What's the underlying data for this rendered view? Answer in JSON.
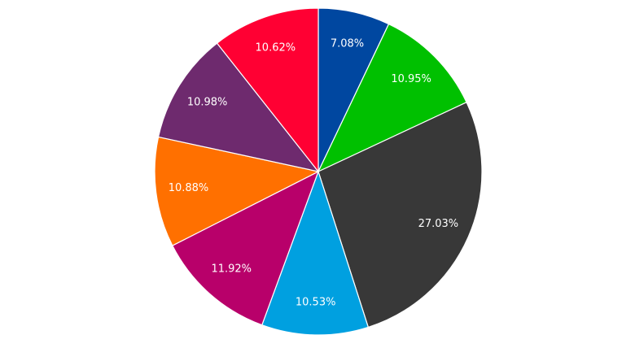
{
  "chart_data": {
    "type": "pie",
    "values": [
      7.08,
      10.95,
      27.03,
      10.53,
      11.92,
      10.88,
      10.98,
      10.62
    ],
    "value_labels": [
      "7.08%",
      "10.95%",
      "27.03%",
      "10.53%",
      "11.92%",
      "10.88%",
      "10.98%",
      "10.62%"
    ],
    "colors": [
      "#0047a0",
      "#00c000",
      "#383838",
      "#00a0e0",
      "#b8006a",
      "#ff7000",
      "#6e2a6e",
      "#ff0033"
    ]
  }
}
